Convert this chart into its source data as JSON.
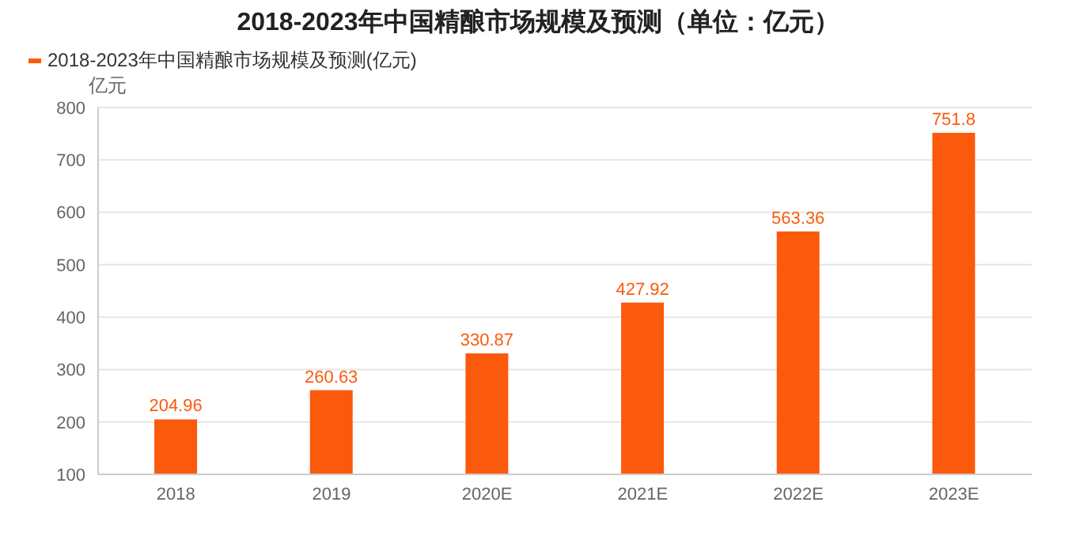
{
  "chart_data": {
    "type": "bar",
    "title": "2018-2023年中国精酿市场规模及预测（单位：亿元）",
    "ylabel": "亿元",
    "categories": [
      "2018",
      "2019",
      "2020E",
      "2021E",
      "2022E",
      "2023E"
    ],
    "series": [
      {
        "name": "2018-2023年中国精酿市场规模及预测(亿元)",
        "color": "#fb5a0c",
        "values": [
          204.96,
          260.63,
          330.87,
          427.92,
          563.36,
          751.8
        ]
      }
    ],
    "ylim": [
      100,
      800
    ],
    "yticks": [
      100,
      200,
      300,
      400,
      500,
      600,
      700,
      800
    ],
    "grid": "y",
    "legend": "top left",
    "data_labels": true
  }
}
